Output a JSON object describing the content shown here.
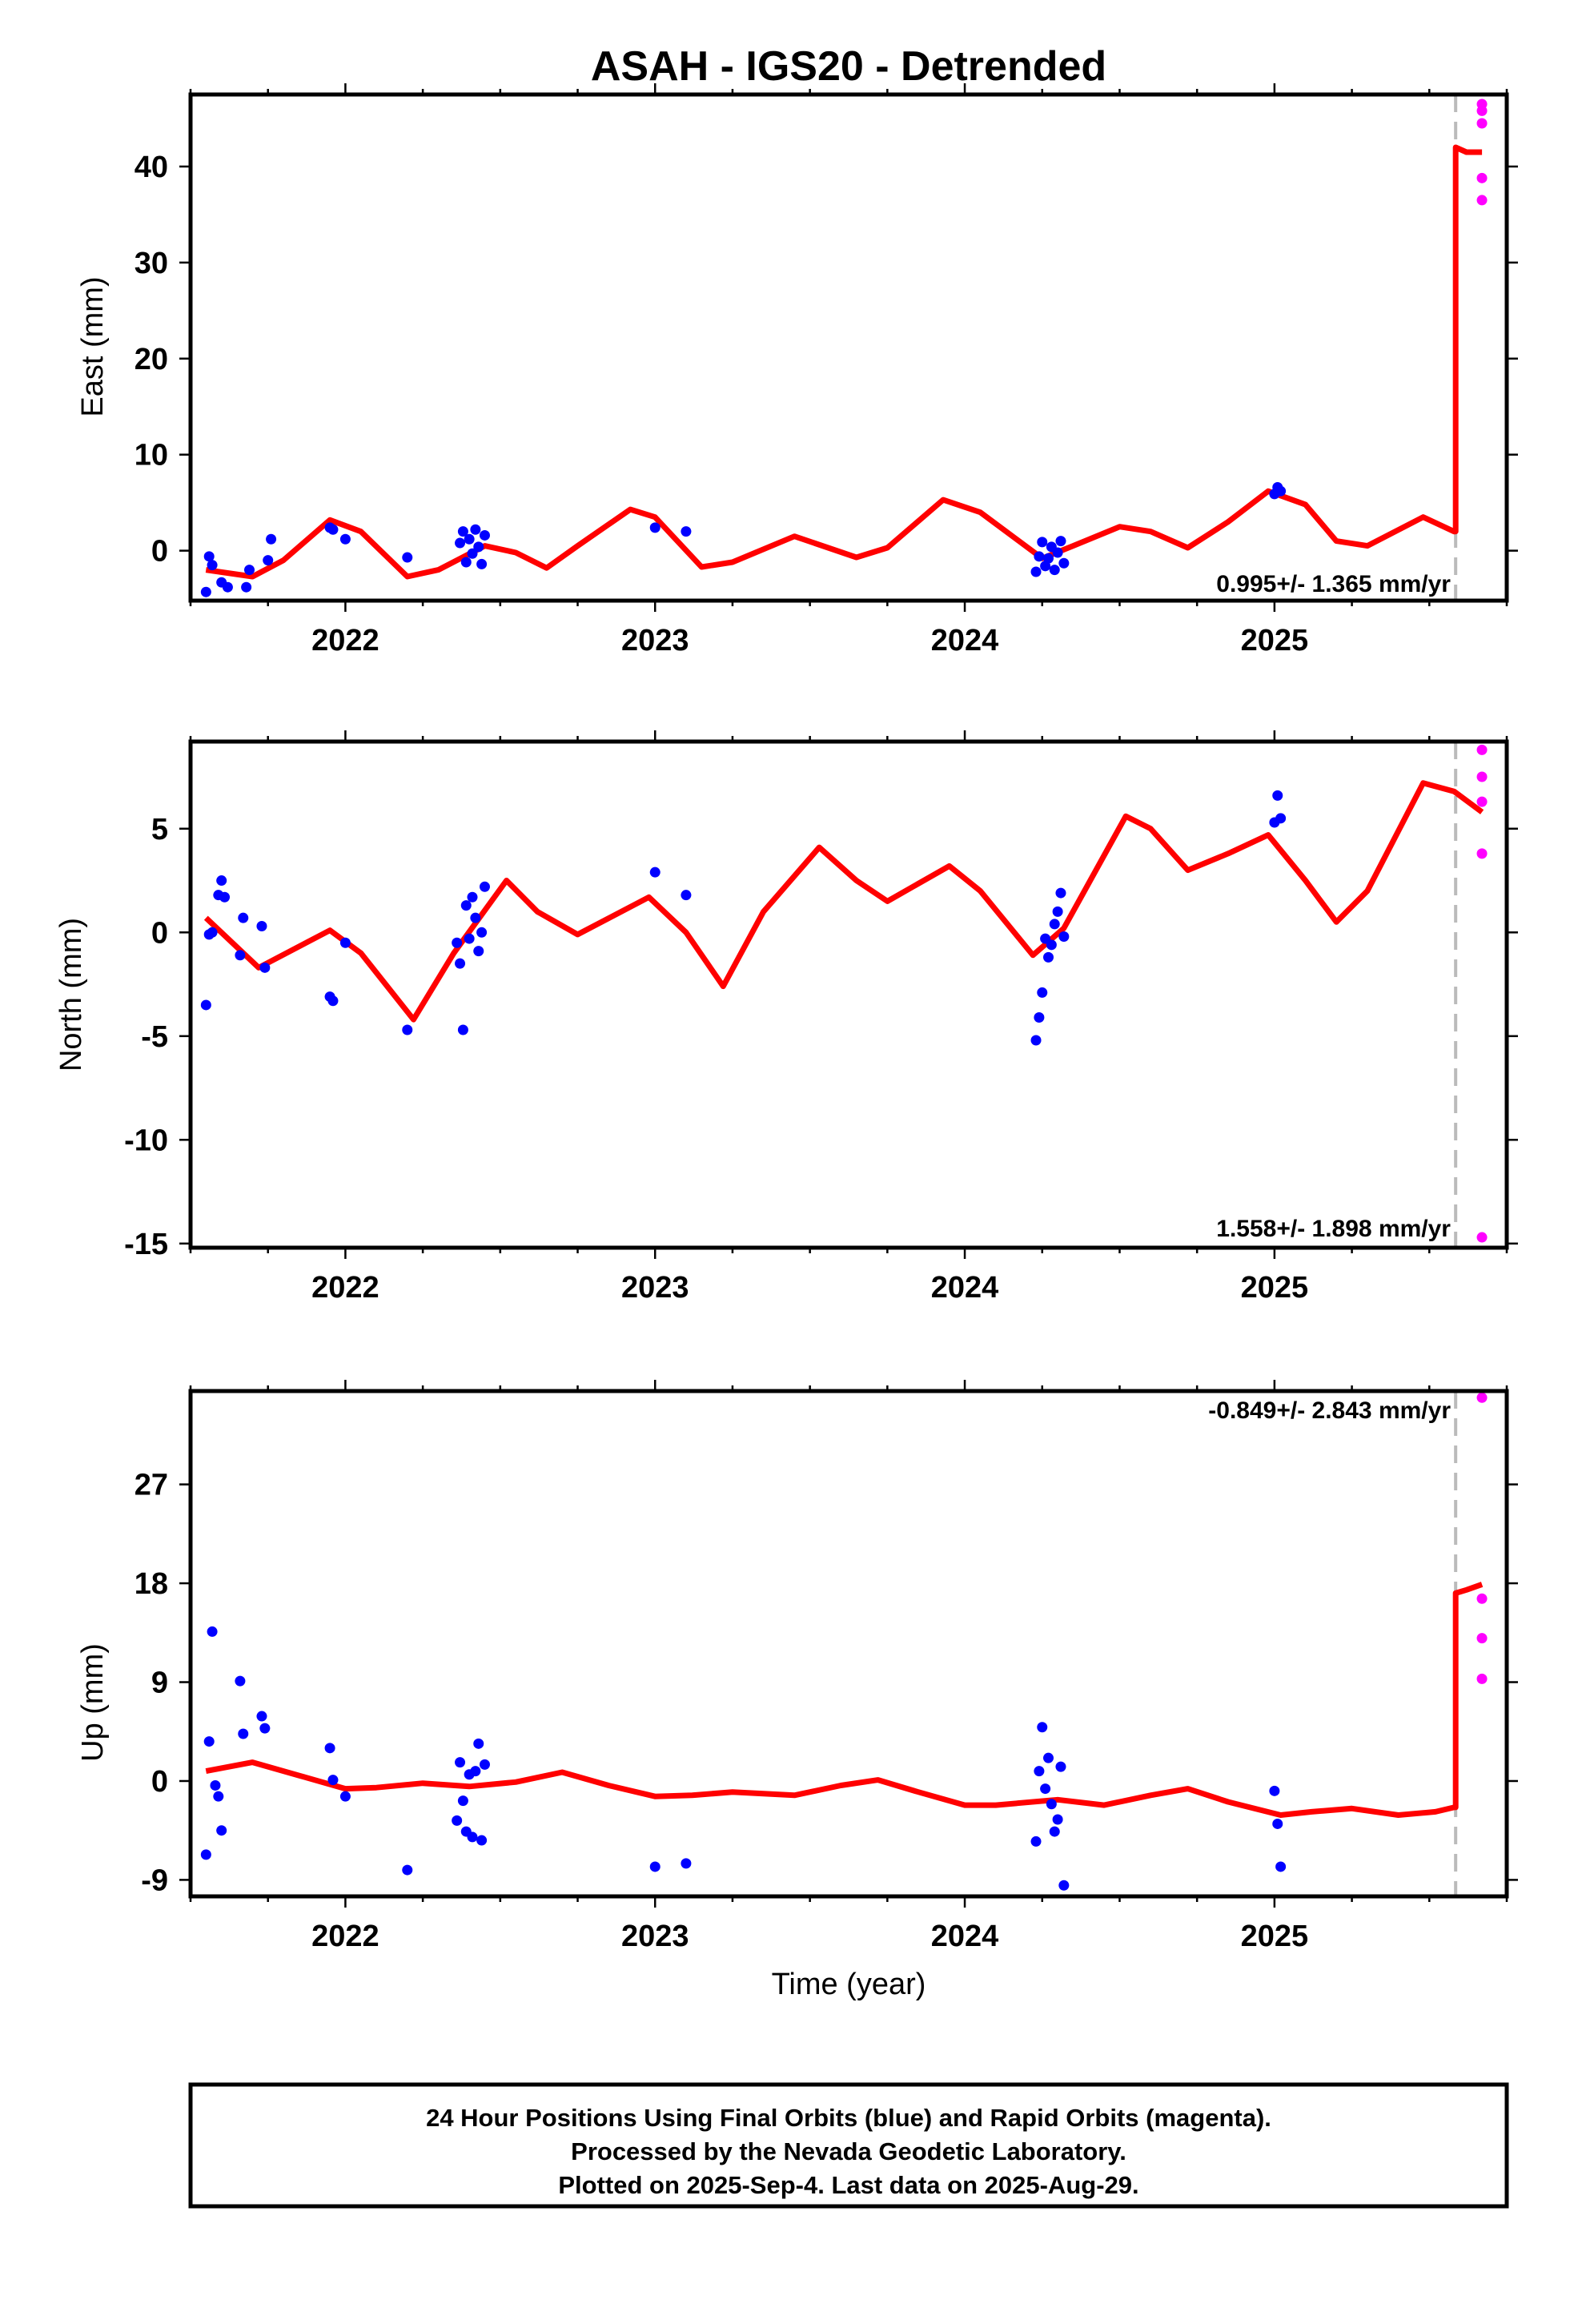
{
  "chart_data": {
    "title": "ASAH - IGS20 - Detrended",
    "xlabel": "Time (year)",
    "x_ticks": [
      2022,
      2023,
      2024,
      2025
    ],
    "xlim": [
      2021.5,
      2025.75
    ],
    "rapid_cutoff": 2025.585,
    "colors": {
      "final": "#0000ff",
      "rapid": "#ff00ff",
      "model": "#ff0000",
      "cutoff": "#bbbbbb"
    },
    "panels": [
      {
        "type": "scatter",
        "ylabel": "East (mm)",
        "ylim": [
          -5.2,
          47.5
        ],
        "y_ticks": [
          0,
          10,
          20,
          30,
          40
        ],
        "rate_text": "0.995+/- 1.365 mm/yr",
        "rate_position": "bottom-right",
        "final_points": [
          [
            2021.55,
            -4.3
          ],
          [
            2021.56,
            -0.6
          ],
          [
            2021.57,
            -1.5
          ],
          [
            2021.6,
            -3.3
          ],
          [
            2021.62,
            -3.8
          ],
          [
            2021.68,
            -3.8
          ],
          [
            2021.69,
            -2.0
          ],
          [
            2021.75,
            -1.0
          ],
          [
            2021.76,
            1.2
          ],
          [
            2021.95,
            2.4
          ],
          [
            2021.96,
            2.2
          ],
          [
            2022.0,
            1.2
          ],
          [
            2022.2,
            -0.7
          ],
          [
            2022.37,
            0.8
          ],
          [
            2022.38,
            2.0
          ],
          [
            2022.39,
            -1.2
          ],
          [
            2022.4,
            1.2
          ],
          [
            2022.41,
            -0.3
          ],
          [
            2022.42,
            2.2
          ],
          [
            2022.43,
            0.4
          ],
          [
            2022.44,
            -1.4
          ],
          [
            2022.45,
            1.6
          ],
          [
            2023.0,
            2.4
          ],
          [
            2023.1,
            2.0
          ],
          [
            2024.23,
            -2.2
          ],
          [
            2024.24,
            -0.6
          ],
          [
            2024.25,
            0.9
          ],
          [
            2024.26,
            -1.6
          ],
          [
            2024.27,
            -0.8
          ],
          [
            2024.28,
            0.4
          ],
          [
            2024.29,
            -2.0
          ],
          [
            2024.3,
            -0.2
          ],
          [
            2024.31,
            1.0
          ],
          [
            2024.32,
            -1.3
          ],
          [
            2025.0,
            5.9
          ],
          [
            2025.01,
            6.6
          ],
          [
            2025.02,
            6.2
          ]
        ],
        "rapid_points": [
          [
            2025.67,
            46.5
          ],
          [
            2025.67,
            45.8
          ],
          [
            2025.67,
            44.5
          ],
          [
            2025.67,
            38.8
          ],
          [
            2025.67,
            36.5
          ]
        ],
        "model": [
          [
            2021.55,
            -2.0
          ],
          [
            2021.7,
            -2.7
          ],
          [
            2021.8,
            -1.0
          ],
          [
            2021.95,
            3.2
          ],
          [
            2022.05,
            2.0
          ],
          [
            2022.2,
            -2.7
          ],
          [
            2022.3,
            -2.0
          ],
          [
            2022.45,
            0.5
          ],
          [
            2022.55,
            -0.2
          ],
          [
            2022.65,
            -1.8
          ],
          [
            2022.75,
            0.5
          ],
          [
            2022.92,
            4.3
          ],
          [
            2023.0,
            3.5
          ],
          [
            2023.15,
            -1.7
          ],
          [
            2023.25,
            -1.2
          ],
          [
            2023.45,
            1.5
          ],
          [
            2023.65,
            -0.7
          ],
          [
            2023.75,
            0.3
          ],
          [
            2023.93,
            5.3
          ],
          [
            2024.05,
            4.0
          ],
          [
            2024.25,
            -0.8
          ],
          [
            2024.35,
            0.5
          ],
          [
            2024.5,
            2.5
          ],
          [
            2024.6,
            2.0
          ],
          [
            2024.72,
            0.3
          ],
          [
            2024.85,
            3.0
          ],
          [
            2024.98,
            6.2
          ],
          [
            2025.1,
            4.8
          ],
          [
            2025.2,
            1.0
          ],
          [
            2025.3,
            0.5
          ],
          [
            2025.48,
            3.5
          ],
          [
            2025.58,
            2.0
          ]
        ],
        "model_tail": [
          [
            2025.585,
            42.0
          ],
          [
            2025.62,
            41.5
          ],
          [
            2025.67,
            41.5
          ]
        ]
      },
      {
        "type": "scatter",
        "ylabel": "North (mm)",
        "ylim": [
          -15.2,
          9.2
        ],
        "y_ticks": [
          -15,
          -10,
          -5,
          0,
          5
        ],
        "rate_text": "1.558+/- 1.898 mm/yr",
        "rate_position": "bottom-right",
        "final_points": [
          [
            2021.55,
            -3.5
          ],
          [
            2021.56,
            -0.1
          ],
          [
            2021.57,
            0.0
          ],
          [
            2021.59,
            1.8
          ],
          [
            2021.6,
            2.5
          ],
          [
            2021.61,
            1.7
          ],
          [
            2021.66,
            -1.1
          ],
          [
            2021.67,
            0.7
          ],
          [
            2021.73,
            0.3
          ],
          [
            2021.74,
            -1.7
          ],
          [
            2021.95,
            -3.1
          ],
          [
            2021.96,
            -3.3
          ],
          [
            2022.0,
            -0.5
          ],
          [
            2022.2,
            -4.7
          ],
          [
            2022.36,
            -0.5
          ],
          [
            2022.37,
            -1.5
          ],
          [
            2022.38,
            -4.7
          ],
          [
            2022.39,
            1.3
          ],
          [
            2022.4,
            -0.3
          ],
          [
            2022.41,
            1.7
          ],
          [
            2022.42,
            0.7
          ],
          [
            2022.43,
            -0.9
          ],
          [
            2022.44,
            0.0
          ],
          [
            2022.45,
            2.2
          ],
          [
            2023.0,
            2.9
          ],
          [
            2023.1,
            1.8
          ],
          [
            2024.23,
            -5.2
          ],
          [
            2024.24,
            -4.1
          ],
          [
            2024.25,
            -2.9
          ],
          [
            2024.26,
            -0.3
          ],
          [
            2024.27,
            -1.2
          ],
          [
            2024.28,
            -0.6
          ],
          [
            2024.29,
            0.4
          ],
          [
            2024.3,
            1.0
          ],
          [
            2024.31,
            1.9
          ],
          [
            2024.32,
            -0.2
          ],
          [
            2025.0,
            5.3
          ],
          [
            2025.01,
            6.6
          ],
          [
            2025.02,
            5.5
          ]
        ],
        "rapid_points": [
          [
            2025.67,
            8.8
          ],
          [
            2025.67,
            7.5
          ],
          [
            2025.67,
            6.3
          ],
          [
            2025.67,
            3.8
          ],
          [
            2025.67,
            -14.7
          ]
        ],
        "model": [
          [
            2021.55,
            0.7
          ],
          [
            2021.72,
            -1.7
          ],
          [
            2021.95,
            0.1
          ],
          [
            2022.05,
            -1.0
          ],
          [
            2022.22,
            -4.2
          ],
          [
            2022.35,
            -1.0
          ],
          [
            2022.52,
            2.5
          ],
          [
            2022.62,
            1.0
          ],
          [
            2022.75,
            -0.1
          ],
          [
            2022.98,
            1.7
          ],
          [
            2023.1,
            0.0
          ],
          [
            2023.22,
            -2.6
          ],
          [
            2023.35,
            1.0
          ],
          [
            2023.53,
            4.1
          ],
          [
            2023.65,
            2.5
          ],
          [
            2023.75,
            1.5
          ],
          [
            2023.95,
            3.2
          ],
          [
            2024.05,
            2.0
          ],
          [
            2024.22,
            -1.1
          ],
          [
            2024.32,
            0.2
          ],
          [
            2024.52,
            5.6
          ],
          [
            2024.6,
            5.0
          ],
          [
            2024.72,
            3.0
          ],
          [
            2024.85,
            3.8
          ],
          [
            2024.98,
            4.7
          ],
          [
            2025.1,
            2.5
          ],
          [
            2025.2,
            0.5
          ],
          [
            2025.3,
            2.0
          ],
          [
            2025.48,
            7.2
          ],
          [
            2025.58,
            6.8
          ],
          [
            2025.67,
            5.8
          ]
        ]
      },
      {
        "type": "scatter",
        "ylabel": "Up (mm)",
        "ylim": [
          -10.5,
          35.5
        ],
        "y_ticks": [
          -9,
          0,
          9,
          18,
          27
        ],
        "rate_text": "-0.849+/- 2.843 mm/yr",
        "rate_position": "top-right",
        "final_points": [
          [
            2021.55,
            -6.7
          ],
          [
            2021.56,
            3.6
          ],
          [
            2021.57,
            13.6
          ],
          [
            2021.58,
            -0.4
          ],
          [
            2021.59,
            -1.4
          ],
          [
            2021.6,
            -4.5
          ],
          [
            2021.66,
            9.1
          ],
          [
            2021.67,
            4.3
          ],
          [
            2021.73,
            5.9
          ],
          [
            2021.74,
            4.8
          ],
          [
            2021.95,
            3.0
          ],
          [
            2021.96,
            0.1
          ],
          [
            2022.0,
            -1.4
          ],
          [
            2022.2,
            -8.1
          ],
          [
            2022.36,
            -3.6
          ],
          [
            2022.37,
            1.7
          ],
          [
            2022.38,
            -1.8
          ],
          [
            2022.39,
            -4.6
          ],
          [
            2022.4,
            0.6
          ],
          [
            2022.41,
            -5.1
          ],
          [
            2022.42,
            0.9
          ],
          [
            2022.43,
            3.4
          ],
          [
            2022.44,
            -5.4
          ],
          [
            2022.45,
            1.5
          ],
          [
            2023.0,
            -7.8
          ],
          [
            2023.1,
            -7.5
          ],
          [
            2024.23,
            -5.5
          ],
          [
            2024.24,
            0.9
          ],
          [
            2024.25,
            4.9
          ],
          [
            2024.26,
            -0.7
          ],
          [
            2024.27,
            2.1
          ],
          [
            2024.28,
            -2.1
          ],
          [
            2024.29,
            -4.6
          ],
          [
            2024.3,
            -3.5
          ],
          [
            2024.31,
            1.3
          ],
          [
            2024.32,
            -9.5
          ],
          [
            2025.0,
            -0.9
          ],
          [
            2025.01,
            -3.9
          ],
          [
            2025.02,
            -7.8
          ]
        ],
        "rapid_points": [
          [
            2025.67,
            34.9
          ],
          [
            2025.67,
            16.6
          ],
          [
            2025.67,
            13.0
          ],
          [
            2025.67,
            9.3
          ]
        ],
        "model": [
          [
            2021.55,
            0.9
          ],
          [
            2021.7,
            1.7
          ],
          [
            2021.85,
            0.5
          ],
          [
            2022.0,
            -0.7
          ],
          [
            2022.1,
            -0.6
          ],
          [
            2022.25,
            -0.2
          ],
          [
            2022.4,
            -0.5
          ],
          [
            2022.55,
            -0.1
          ],
          [
            2022.7,
            0.8
          ],
          [
            2022.85,
            -0.4
          ],
          [
            2023.0,
            -1.4
          ],
          [
            2023.12,
            -1.3
          ],
          [
            2023.25,
            -1.0
          ],
          [
            2023.45,
            -1.3
          ],
          [
            2023.6,
            -0.4
          ],
          [
            2023.72,
            0.1
          ],
          [
            2023.85,
            -1.0
          ],
          [
            2024.0,
            -2.2
          ],
          [
            2024.1,
            -2.2
          ],
          [
            2024.3,
            -1.7
          ],
          [
            2024.45,
            -2.2
          ],
          [
            2024.6,
            -1.3
          ],
          [
            2024.72,
            -0.7
          ],
          [
            2024.85,
            -1.9
          ],
          [
            2025.02,
            -3.1
          ],
          [
            2025.12,
            -2.8
          ],
          [
            2025.25,
            -2.5
          ],
          [
            2025.4,
            -3.1
          ],
          [
            2025.52,
            -2.8
          ],
          [
            2025.58,
            -2.4
          ]
        ],
        "model_tail": [
          [
            2025.585,
            17.1
          ],
          [
            2025.62,
            17.4
          ],
          [
            2025.67,
            17.9
          ]
        ]
      }
    ]
  },
  "footer": {
    "line1": "24 Hour Positions Using Final Orbits (blue) and Rapid Orbits (magenta).",
    "line2": "Processed by the Nevada Geodetic Laboratory.",
    "line3": "Plotted on 2025-Sep-4. Last data on 2025-Aug-29."
  }
}
